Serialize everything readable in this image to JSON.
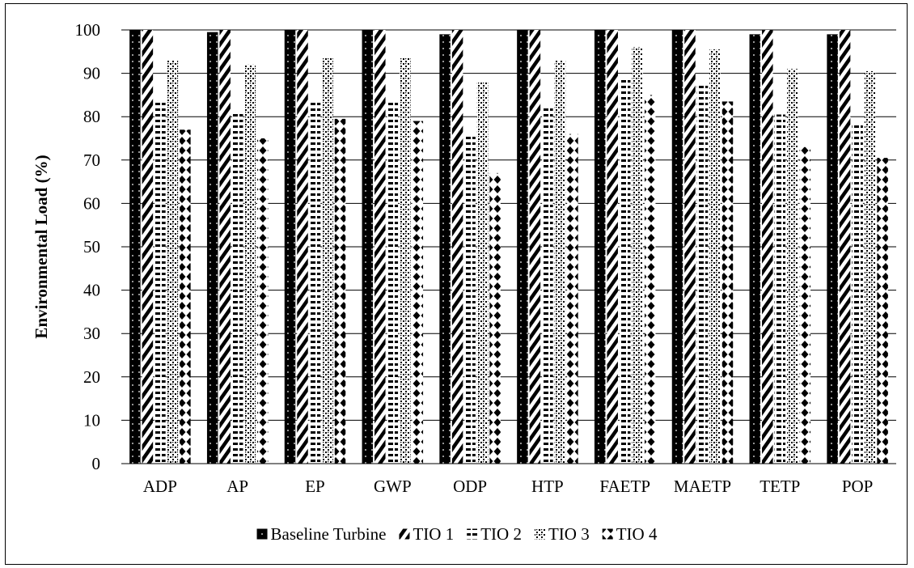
{
  "chart_data": {
    "type": "bar",
    "title": "",
    "xlabel": "",
    "ylabel": "Environmental Load (%)",
    "ylim": [
      0,
      100
    ],
    "yticks": [
      0,
      10,
      20,
      30,
      40,
      50,
      60,
      70,
      80,
      90,
      100
    ],
    "grid": true,
    "legend_position": "bottom",
    "categories": [
      "ADP",
      "AP",
      "EP",
      "GWP",
      "ODP",
      "HTP",
      "FAETP",
      "MAETP",
      "TETP",
      "POP"
    ],
    "series": [
      {
        "name": "Baseline Turbine",
        "pattern": "black-dots",
        "values": [
          100,
          99.5,
          100,
          100,
          99,
          100,
          100,
          100,
          99,
          99
        ]
      },
      {
        "name": "TIO 1",
        "pattern": "diagonal-stripes",
        "values": [
          100,
          100,
          100,
          100,
          100,
          100,
          100,
          100,
          100,
          100
        ]
      },
      {
        "name": "TIO 2",
        "pattern": "horizontal-dashes",
        "values": [
          83.5,
          81,
          83.5,
          83.5,
          76,
          82,
          89,
          87.5,
          80.5,
          78
        ]
      },
      {
        "name": "TIO 3",
        "pattern": "checker-dots",
        "values": [
          93,
          92,
          93.5,
          93.5,
          88,
          93,
          96,
          95.5,
          91,
          90.5
        ]
      },
      {
        "name": "TIO 4",
        "pattern": "diamonds",
        "values": [
          77,
          75,
          79.5,
          79,
          67,
          76,
          85,
          83.5,
          73,
          70.5
        ]
      }
    ]
  }
}
